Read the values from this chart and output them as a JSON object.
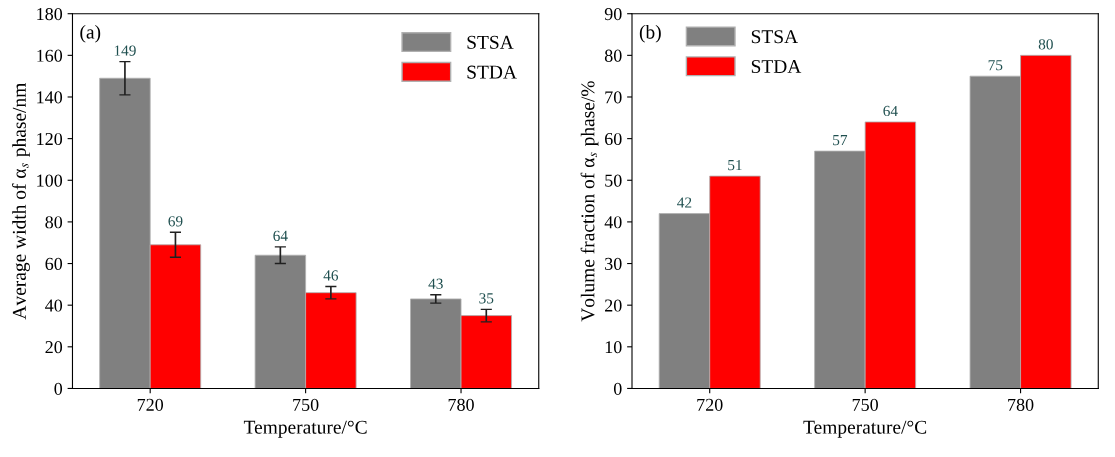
{
  "chart_data": [
    {
      "type": "bar",
      "xlabel": "Temperature/°C",
      "ylabel": "Average width of α$_{s}$ phase/nm",
      "annotations": [
        "(a)"
      ],
      "categories": [
        "720",
        "750",
        "780"
      ],
      "series": [
        {
          "name": "STSA",
          "color": "#808080",
          "values": [
            149,
            64,
            43
          ],
          "errors": [
            8,
            4,
            2
          ]
        },
        {
          "name": "STDA",
          "color": "#ff0000",
          "values": [
            69,
            46,
            35
          ],
          "errors": [
            6,
            3,
            3
          ]
        }
      ],
      "data_labels": true,
      "ylim": [
        0,
        180
      ],
      "yticks": [
        0,
        20,
        40,
        60,
        80,
        100,
        120,
        140,
        160,
        180
      ],
      "legend": "top right",
      "grid": false
    },
    {
      "type": "bar",
      "xlabel": "Temperature/°C",
      "ylabel": "Volume fraction of α$_{s}$ phase/%",
      "annotations": [
        "(b)"
      ],
      "categories": [
        "720",
        "750",
        "780"
      ],
      "series": [
        {
          "name": "STSA",
          "color": "#808080",
          "values": [
            42,
            57,
            75
          ]
        },
        {
          "name": "STDA",
          "color": "#ff0000",
          "values": [
            51,
            64,
            80
          ]
        }
      ],
      "data_labels": true,
      "ylim": [
        0,
        90
      ],
      "yticks": [
        0,
        10,
        20,
        30,
        40,
        50,
        60,
        70,
        80,
        90
      ],
      "legend": "top left",
      "grid": false
    }
  ]
}
